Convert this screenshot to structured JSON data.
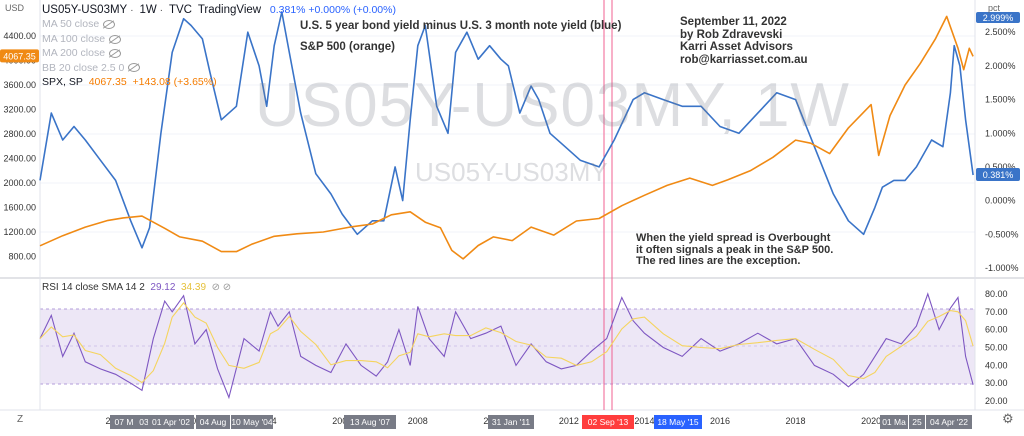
{
  "header": {
    "symbol": "US05Y-US03MY",
    "interval": "1W",
    "source": "TVC",
    "platform": "TradingView",
    "quote": "0.381%  +0.000% (+0.00%)"
  },
  "legend": [
    {
      "label": "MA 50 close"
    },
    {
      "label": "MA 100 close"
    },
    {
      "label": "MA 200 close"
    },
    {
      "label": "BB 20 close 2.5 0"
    }
  ],
  "spx_legend": {
    "name": "SPX, SP",
    "price": "4067.35",
    "change": "+143.08 (+3.65%)"
  },
  "annotations": {
    "title_line1": "U.S. 5 year bond yield minus U.S. 3 month note yield (blue)",
    "title_line2": "S&P 500 (orange)",
    "date": "September 11, 2022",
    "author": "by Rob Zdravevski",
    "company": "Karri Asset Advisors",
    "email": "rob@karriasset.com.au",
    "note1": "When the yield spread is Overbought",
    "note2": "it often signals a peak in the S&P 500.",
    "note3": "The red lines are the exception."
  },
  "watermark": {
    "big": "US05Y-US03MY, 1W",
    "small": "US05Y-US03MY"
  },
  "rsi_legend": {
    "label": "RSI 14 close SMA 14 2",
    "rsi": "29.12",
    "sma": "34.39"
  },
  "colors": {
    "spread": "#3a74c8",
    "spx": "#f08a14",
    "rsi": "#7e57c2",
    "rsi_sma": "#f5d45e",
    "rsi_band": "#ede7f6",
    "red_line": "#f06292",
    "axis_text": "#333"
  },
  "corner": {
    "top_left": "USD",
    "top_right": "pct",
    "bottom_left": "Z",
    "gear": "gear-icon"
  },
  "chart_data": [
    {
      "type": "line",
      "title": "U.S. 5 year bond yield minus U.S. 3 month note yield (blue)",
      "x_range": [
        1998.0,
        2022.75
      ],
      "left_axis": {
        "ticks": [
          800,
          1200,
          1600,
          2000,
          2400,
          2800,
          3200,
          3600,
          4000,
          4400
        ],
        "price_label": "4067.35"
      },
      "right_axis": {
        "ticks": [
          "-1.000%",
          "-0.500%",
          "0.000%",
          "0.500%",
          "1.000%",
          "1.500%",
          "2.000%",
          "2.500%"
        ],
        "ylim": [
          -1.0,
          2.8
        ],
        "price_label": "0.381%",
        "top_label": "2.999%"
      },
      "series": [
        {
          "name": "US05Y-US03MY",
          "axis": "right",
          "x": [
            1998.0,
            1998.3,
            1998.6,
            1998.9,
            1999.2,
            1999.6,
            2000.0,
            2000.4,
            2000.7,
            2000.9,
            2001.2,
            2001.5,
            2001.8,
            2002.0,
            2002.3,
            2002.5,
            2002.8,
            2003.2,
            2003.5,
            2003.8,
            2004.0,
            2004.2,
            2004.4,
            2004.6,
            2004.9,
            2005.3,
            2005.7,
            2006.0,
            2006.4,
            2006.8,
            2007.1,
            2007.4,
            2007.6,
            2007.8,
            2008.0,
            2008.2,
            2008.5,
            2008.8,
            2009.0,
            2009.3,
            2009.6,
            2009.9,
            2010.2,
            2010.4,
            2010.7,
            2011.0,
            2011.2,
            2011.5,
            2011.9,
            2012.3,
            2012.8,
            2013.2,
            2013.7,
            2014.0,
            2014.5,
            2015.0,
            2015.5,
            2016.0,
            2016.5,
            2017.0,
            2017.5,
            2018.0,
            2018.5,
            2019.0,
            2019.4,
            2019.8,
            2020.1,
            2020.3,
            2020.6,
            2020.9,
            2021.2,
            2021.6,
            2021.9,
            2022.1,
            2022.2,
            2022.35,
            2022.5,
            2022.7
          ],
          "y": [
            0.3,
            1.3,
            0.9,
            1.1,
            0.9,
            0.6,
            0.3,
            -0.3,
            -0.7,
            -0.4,
            1.0,
            2.2,
            2.7,
            2.6,
            2.4,
            1.9,
            1.2,
            1.4,
            2.5,
            2.0,
            1.4,
            2.3,
            2.8,
            2.2,
            1.3,
            0.4,
            0.1,
            -0.2,
            -0.5,
            -0.3,
            -0.3,
            0.5,
            0.0,
            1.2,
            2.3,
            2.6,
            1.4,
            1.0,
            2.2,
            2.5,
            2.1,
            2.3,
            2.1,
            2.0,
            1.3,
            1.7,
            1.5,
            1.0,
            0.8,
            0.6,
            0.5,
            0.9,
            1.5,
            1.6,
            1.5,
            1.4,
            1.4,
            1.1,
            1.0,
            1.3,
            1.6,
            1.5,
            0.8,
            0.1,
            -0.3,
            -0.5,
            -0.1,
            0.2,
            0.3,
            0.3,
            0.5,
            0.9,
            0.8,
            1.6,
            2.3,
            2.0,
            1.2,
            0.381
          ]
        },
        {
          "name": "SPX, SP",
          "axis": "left",
          "x": [
            1998.0,
            1998.6,
            1999.2,
            1999.8,
            2000.2,
            2000.7,
            2001.3,
            2001.7,
            2002.3,
            2002.8,
            2003.2,
            2003.6,
            2004.2,
            2004.8,
            2005.5,
            2006.2,
            2006.8,
            2007.3,
            2007.8,
            2008.2,
            2008.6,
            2008.9,
            2009.2,
            2009.6,
            2010.0,
            2010.5,
            2011.0,
            2011.6,
            2012.2,
            2012.8,
            2013.4,
            2014.0,
            2014.6,
            2015.2,
            2015.8,
            2016.2,
            2016.8,
            2017.4,
            2018.0,
            2018.4,
            2018.9,
            2019.4,
            2020.0,
            2020.2,
            2020.5,
            2020.9,
            2021.3,
            2021.7,
            2022.0,
            2022.3,
            2022.45,
            2022.6,
            2022.7
          ],
          "y": [
            975,
            1140,
            1280,
            1390,
            1430,
            1460,
            1260,
            1120,
            1050,
            880,
            880,
            1000,
            1130,
            1170,
            1200,
            1280,
            1330,
            1480,
            1530,
            1360,
            1270,
            900,
            760,
            980,
            1120,
            1060,
            1280,
            1150,
            1380,
            1420,
            1630,
            1800,
            1960,
            2080,
            1960,
            2050,
            2200,
            2420,
            2700,
            2650,
            2480,
            2900,
            3280,
            2450,
            3100,
            3600,
            3950,
            4350,
            4720,
            4200,
            3850,
            4200,
            4067.35
          ]
        }
      ],
      "xaxis": {
        "ticks": [
          "2000",
          "2002",
          "2004",
          "2006",
          "2008",
          "2010",
          "2012",
          "2014",
          "2016",
          "2018",
          "2020",
          "2022"
        ]
      }
    },
    {
      "type": "line",
      "title": "RSI 14 close SMA 14 2",
      "ylim": [
        15,
        85
      ],
      "yaxis": {
        "ticks": [
          "20.00",
          "30.00",
          "40.00",
          "50.00",
          "60.00",
          "70.00",
          "80.00"
        ]
      },
      "band": [
        30,
        70
      ],
      "series": [
        {
          "name": "RSI",
          "x": [
            1998.0,
            1998.3,
            1998.6,
            1998.9,
            1999.2,
            1999.6,
            2000.0,
            2000.4,
            2000.7,
            2001.0,
            2001.3,
            2001.5,
            2001.8,
            2002.1,
            2002.4,
            2002.7,
            2003.0,
            2003.4,
            2003.8,
            2004.1,
            2004.3,
            2004.6,
            2004.9,
            2005.3,
            2005.7,
            2006.1,
            2006.5,
            2006.9,
            2007.2,
            2007.5,
            2007.8,
            2008.0,
            2008.3,
            2008.7,
            2009.0,
            2009.4,
            2009.8,
            2010.2,
            2010.6,
            2011.0,
            2011.4,
            2011.8,
            2012.2,
            2012.6,
            2013.0,
            2013.4,
            2013.7,
            2014.0,
            2014.5,
            2015.0,
            2015.5,
            2016.0,
            2016.5,
            2017.0,
            2017.5,
            2018.0,
            2018.5,
            2019.0,
            2019.4,
            2019.8,
            2020.1,
            2020.4,
            2020.8,
            2021.2,
            2021.5,
            2021.8,
            2022.1,
            2022.3,
            2022.5,
            2022.7
          ],
          "y": [
            55,
            68,
            45,
            58,
            42,
            38,
            35,
            30,
            26,
            55,
            76,
            70,
            79,
            52,
            60,
            38,
            22,
            55,
            48,
            70,
            62,
            70,
            45,
            40,
            36,
            52,
            40,
            34,
            42,
            60,
            40,
            73,
            55,
            45,
            70,
            55,
            58,
            62,
            40,
            52,
            42,
            38,
            40,
            48,
            55,
            78,
            65,
            58,
            50,
            45,
            55,
            48,
            52,
            58,
            52,
            55,
            40,
            35,
            28,
            35,
            45,
            55,
            52,
            62,
            80,
            60,
            72,
            78,
            45,
            29.12
          ]
        }
      ]
    }
  ],
  "xaxis_badges": [
    "07 M",
    "03",
    "01 Apr '02",
    "04 Aug",
    "10 May '04",
    "13 Aug '07",
    "31 Jan '11",
    "02 Sep '13",
    "18 May '15",
    "01 Ma",
    "25",
    "04 Apr '22"
  ]
}
